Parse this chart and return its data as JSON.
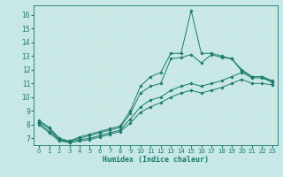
{
  "background_color": "#c8e8e8",
  "grid_color": "#d4e8e0",
  "line_color": "#1a7a6a",
  "xlabel": "Humidex (Indice chaleur)",
  "xlim": [
    -0.5,
    23.5
  ],
  "ylim": [
    6.5,
    16.7
  ],
  "yticks": [
    7,
    8,
    9,
    10,
    11,
    12,
    13,
    14,
    15,
    16
  ],
  "xticks": [
    0,
    1,
    2,
    3,
    4,
    5,
    6,
    7,
    8,
    9,
    10,
    11,
    12,
    13,
    14,
    15,
    16,
    17,
    18,
    19,
    20,
    21,
    22,
    23
  ],
  "series": [
    {
      "x": [
        0,
        1,
        2,
        3,
        4,
        5,
        6,
        7,
        8,
        9,
        10,
        11,
        12,
        13,
        14,
        15,
        16,
        17,
        18,
        19,
        20,
        21,
        22,
        23
      ],
      "y": [
        8.3,
        7.8,
        7.0,
        6.8,
        7.1,
        7.3,
        7.5,
        7.7,
        7.9,
        9.0,
        10.8,
        11.5,
        11.8,
        13.2,
        13.2,
        16.3,
        13.2,
        13.2,
        13.0,
        12.8,
        12.0,
        11.5,
        11.5,
        11.2
      ]
    },
    {
      "x": [
        0,
        1,
        2,
        3,
        4,
        5,
        6,
        7,
        8,
        9,
        10,
        11,
        12,
        13,
        14,
        15,
        16,
        17,
        18,
        19,
        20,
        21,
        22,
        23
      ],
      "y": [
        8.2,
        7.7,
        6.9,
        6.8,
        7.0,
        7.2,
        7.4,
        7.6,
        7.8,
        8.8,
        10.3,
        10.8,
        11.0,
        12.8,
        12.9,
        13.1,
        12.5,
        13.1,
        12.9,
        12.8,
        11.9,
        11.5,
        11.5,
        11.1
      ]
    },
    {
      "x": [
        0,
        1,
        2,
        3,
        4,
        5,
        6,
        7,
        8,
        9,
        10,
        11,
        12,
        13,
        14,
        15,
        16,
        17,
        18,
        19,
        20,
        21,
        22,
        23
      ],
      "y": [
        8.1,
        7.5,
        6.9,
        6.7,
        6.9,
        7.0,
        7.2,
        7.4,
        7.6,
        8.4,
        9.3,
        9.8,
        10.0,
        10.5,
        10.8,
        11.0,
        10.8,
        11.0,
        11.2,
        11.5,
        11.8,
        11.4,
        11.4,
        11.1
      ]
    },
    {
      "x": [
        0,
        1,
        2,
        3,
        4,
        5,
        6,
        7,
        8,
        9,
        10,
        11,
        12,
        13,
        14,
        15,
        16,
        17,
        18,
        19,
        20,
        21,
        22,
        23
      ],
      "y": [
        8.0,
        7.4,
        6.8,
        6.7,
        6.8,
        6.9,
        7.1,
        7.3,
        7.5,
        8.1,
        8.9,
        9.3,
        9.6,
        10.0,
        10.3,
        10.5,
        10.3,
        10.5,
        10.7,
        11.0,
        11.3,
        11.0,
        11.0,
        10.9
      ]
    }
  ]
}
